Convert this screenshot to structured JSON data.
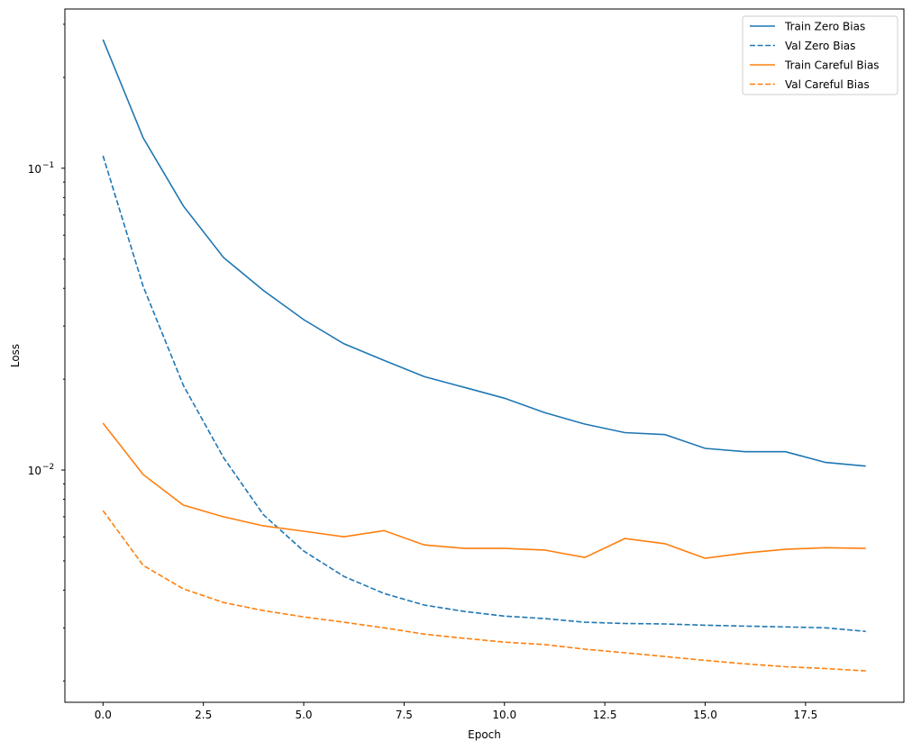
{
  "chart_data": {
    "type": "line",
    "title": "",
    "xlabel": "Epoch",
    "ylabel": "Loss",
    "yscale": "log",
    "xlim": [
      -0.95,
      19.95
    ],
    "ylim": [
      0.0017,
      0.337
    ],
    "grid": false,
    "legend_position": "top-right",
    "x": [
      0,
      1,
      2,
      3,
      4,
      5,
      6,
      7,
      8,
      9,
      10,
      11,
      12,
      13,
      14,
      15,
      16,
      17,
      18,
      19
    ],
    "xticks": [
      0,
      2.5,
      5,
      7.5,
      10,
      12.5,
      15,
      17.5
    ],
    "xtick_labels": [
      "0.0",
      "2.5",
      "5.0",
      "7.5",
      "10.0",
      "12.5",
      "15.0",
      "17.5"
    ],
    "yticks": [
      0.01,
      0.1
    ],
    "ytick_labels": [
      {
        "base": "10",
        "exp": "−2"
      },
      {
        "base": "10",
        "exp": "−1"
      }
    ],
    "series": [
      {
        "name": "Train Zero Bias",
        "color": "#1f77b4",
        "dash": "solid",
        "values": [
          0.267,
          0.126,
          0.075,
          0.0506,
          0.0393,
          0.0315,
          0.0262,
          0.0231,
          0.0204,
          0.0188,
          0.0173,
          0.0155,
          0.0142,
          0.0133,
          0.0131,
          0.0118,
          0.0115,
          0.0115,
          0.0106,
          0.0103
        ]
      },
      {
        "name": "Val Zero Bias",
        "color": "#1f77b4",
        "dash": "dashed",
        "values": [
          0.11,
          0.0406,
          0.0191,
          0.011,
          0.0071,
          0.00539,
          0.00444,
          0.0039,
          0.00357,
          0.0034,
          0.00328,
          0.00322,
          0.00313,
          0.0031,
          0.00309,
          0.00306,
          0.00304,
          0.00302,
          0.003,
          0.00292
        ]
      },
      {
        "name": "Train Careful Bias",
        "color": "#ff7f0e",
        "dash": "solid",
        "values": [
          0.0143,
          0.00966,
          0.00765,
          0.007,
          0.00653,
          0.00627,
          0.00601,
          0.0063,
          0.00565,
          0.0055,
          0.0055,
          0.00543,
          0.00513,
          0.00593,
          0.0057,
          0.0051,
          0.00531,
          0.00546,
          0.00553,
          0.0055
        ]
      },
      {
        "name": "Val Careful Bias",
        "color": "#ff7f0e",
        "dash": "dashed",
        "values": [
          0.00734,
          0.00483,
          0.00404,
          0.00364,
          0.00342,
          0.00326,
          0.00313,
          0.003,
          0.00286,
          0.00277,
          0.00269,
          0.00264,
          0.00255,
          0.00248,
          0.00241,
          0.00234,
          0.00228,
          0.00223,
          0.0022,
          0.00216
        ]
      }
    ]
  }
}
